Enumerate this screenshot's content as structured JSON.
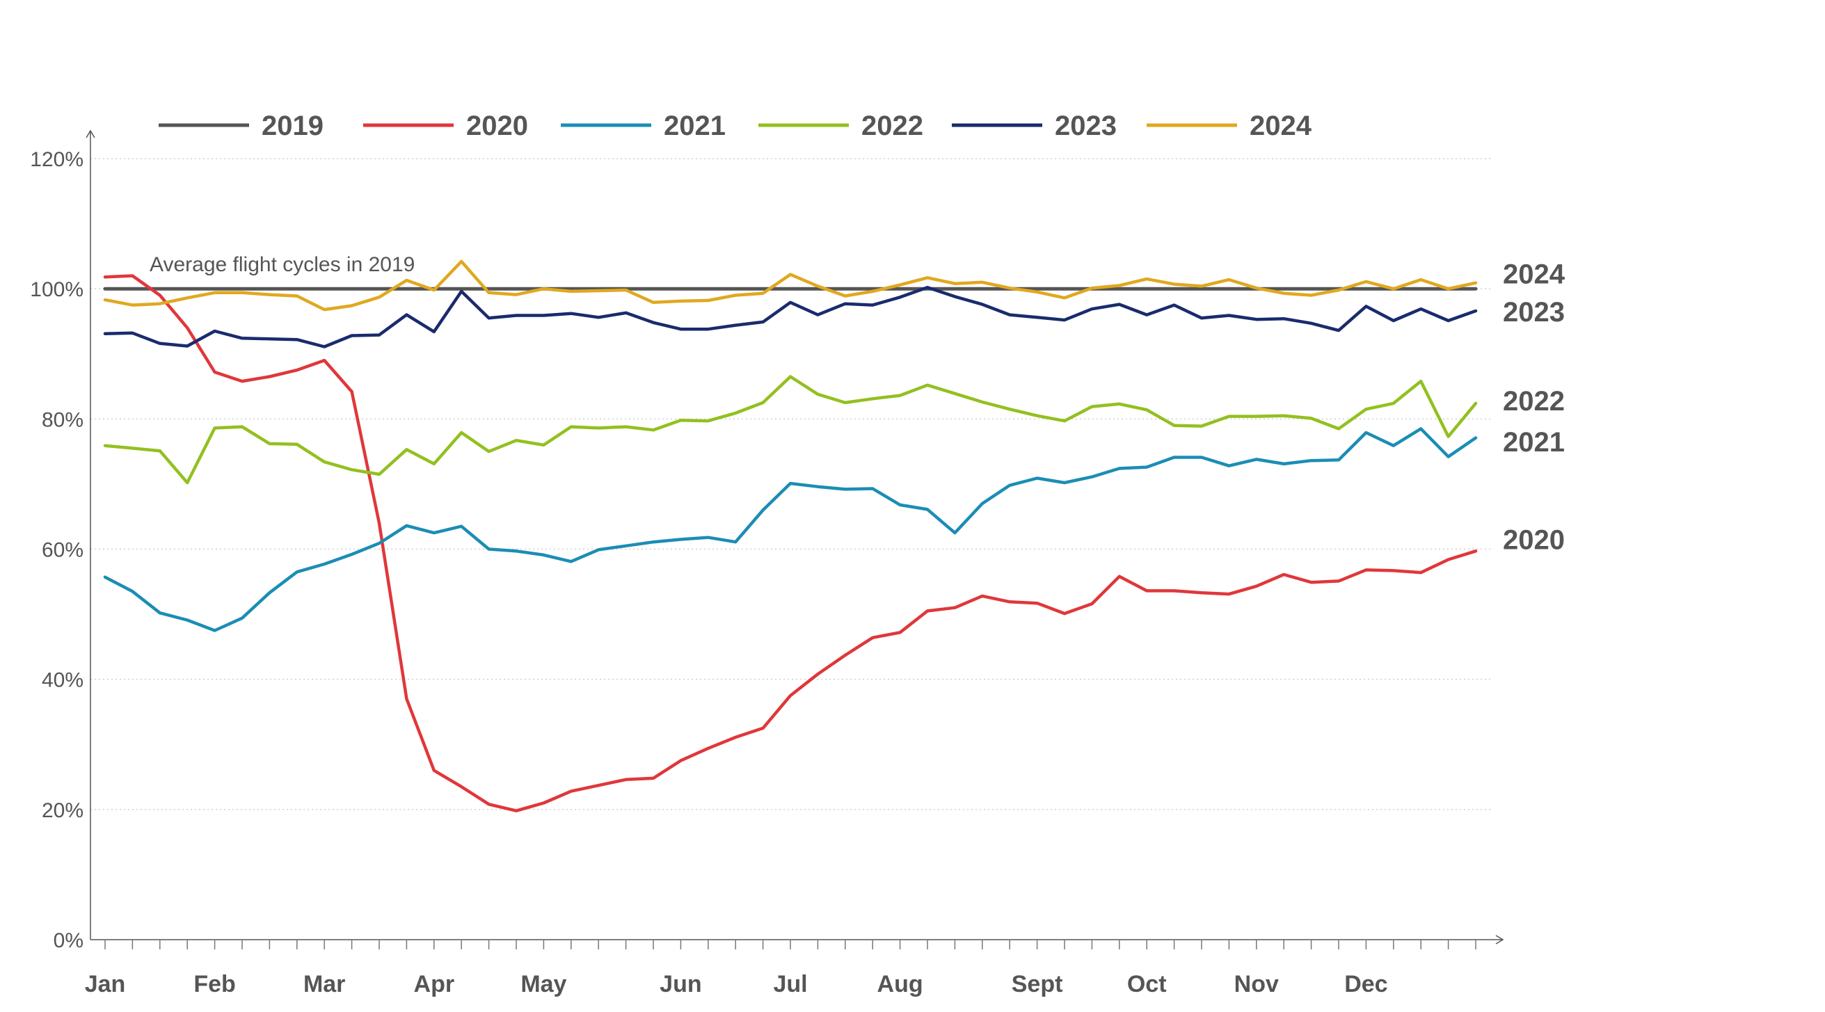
{
  "chart_data": {
    "type": "line",
    "title": "",
    "xlabel": "",
    "ylabel": "",
    "ylim": [
      0,
      120
    ],
    "y_ticks": [
      "0%",
      "20%",
      "40%",
      "60%",
      "80%",
      "100%",
      "120%"
    ],
    "month_labels": [
      "Jan",
      "Feb",
      "Mar",
      "Apr",
      "May",
      "Jun",
      "Jul",
      "Aug",
      "Sept",
      "Oct",
      "Nov",
      "Dec"
    ],
    "month_week_index": [
      0,
      4,
      8,
      12,
      16,
      21,
      25,
      29,
      34,
      38,
      42,
      46
    ],
    "weeks": 51,
    "grid": true,
    "legend": "top",
    "annotation": "Average flight cycles in 2019",
    "series": [
      {
        "name": "2019",
        "color": "#555555",
        "values": [
          100,
          100,
          100,
          100,
          100,
          100,
          100,
          100,
          100,
          100,
          100,
          100,
          100,
          100,
          100,
          100,
          100,
          100,
          100,
          100,
          100,
          100,
          100,
          100,
          100,
          100,
          100,
          100,
          100,
          100,
          100,
          100,
          100,
          100,
          100,
          100,
          100,
          100,
          100,
          100,
          100,
          100,
          100,
          100,
          100,
          100,
          100,
          100,
          100,
          100,
          100
        ]
      },
      {
        "name": "2020",
        "color": "#e0373a",
        "values": [
          101.8,
          102,
          99,
          94,
          87.2,
          85.8,
          86.5,
          87.5,
          89,
          84.2,
          64,
          37,
          26,
          23.5,
          20.8,
          19.8,
          21,
          22.8,
          23.7,
          24.6,
          24.8,
          27.5,
          29.4,
          31.1,
          32.5,
          37.5,
          40.8,
          43.7,
          46.4,
          47.2,
          50.5,
          51,
          52.8,
          51.9,
          51.7,
          50.1,
          51.6,
          55.8,
          53.6,
          53.6,
          53.3,
          53.1,
          54.3,
          56.1,
          54.9,
          55.1,
          56.8,
          56.7,
          56.4,
          58.4,
          59.7
        ]
      },
      {
        "name": "2021",
        "color": "#1b8db5",
        "values": [
          55.7,
          53.5,
          50.2,
          49.1,
          47.5,
          49.4,
          53.3,
          56.5,
          57.7,
          59.2,
          60.9,
          63.6,
          62.5,
          63.5,
          60,
          59.7,
          59.1,
          58.1,
          59.9,
          60.5,
          61.1,
          61.5,
          61.8,
          61.1,
          66,
          70.1,
          69.6,
          69.2,
          69.3,
          66.8,
          66.1,
          62.5,
          67,
          69.8,
          70.9,
          70.2,
          71.1,
          72.4,
          72.6,
          74.1,
          74.1,
          72.8,
          73.8,
          73.1,
          73.6,
          73.7,
          77.9,
          75.9,
          78.5,
          74.2,
          77.1
        ]
      },
      {
        "name": "2022",
        "color": "#93c01f",
        "values": [
          75.9,
          75.5,
          75.1,
          70.2,
          78.6,
          78.8,
          76.2,
          76.1,
          73.4,
          72.2,
          71.5,
          75.3,
          73.1,
          77.9,
          75,
          76.7,
          76,
          78.8,
          78.6,
          78.8,
          78.3,
          79.8,
          79.7,
          80.9,
          82.5,
          86.5,
          83.8,
          82.5,
          83.1,
          83.6,
          85.2,
          83.9,
          82.6,
          81.5,
          80.5,
          79.7,
          81.9,
          82.3,
          81.4,
          79,
          78.9,
          80.4,
          80.4,
          80.5,
          80.1,
          78.5,
          81.5,
          82.4,
          85.8,
          77.3,
          82.4
        ]
      },
      {
        "name": "2023",
        "color": "#1a2b6d",
        "values": [
          93.1,
          93.2,
          91.6,
          91.2,
          93.5,
          92.4,
          92.3,
          92.2,
          91.1,
          92.8,
          92.9,
          96,
          93.4,
          99.6,
          95.5,
          95.9,
          95.9,
          96.2,
          95.6,
          96.3,
          94.8,
          93.8,
          93.8,
          94.4,
          94.9,
          97.9,
          96,
          97.7,
          97.5,
          98.7,
          100.2,
          98.8,
          97.6,
          96,
          95.6,
          95.2,
          96.9,
          97.6,
          96,
          97.5,
          95.5,
          95.9,
          95.3,
          95.4,
          94.7,
          93.6,
          97.3,
          95.1,
          96.9,
          95.1,
          96.6
        ]
      },
      {
        "name": "2024",
        "color": "#e0a81f",
        "values": [
          98.3,
          97.5,
          97.7,
          98.6,
          99.4,
          99.4,
          99.1,
          98.9,
          96.8,
          97.4,
          98.7,
          101.3,
          99.8,
          104.2,
          99.4,
          99.1,
          100,
          99.6,
          99.7,
          99.8,
          97.9,
          98.1,
          98.2,
          99,
          99.3,
          102.2,
          100.4,
          98.9,
          99.6,
          100.6,
          101.7,
          100.8,
          101,
          100.1,
          99.5,
          98.6,
          100.1,
          100.5,
          101.5,
          100.7,
          100.4,
          101.4,
          100.1,
          99.3,
          99,
          99.8,
          101.1,
          100,
          101.4,
          100,
          100.9
        ]
      }
    ],
    "end_labels": [
      {
        "name": "2024",
        "value": 102.3
      },
      {
        "name": "2023",
        "value": 96.5
      },
      {
        "name": "2022",
        "value": 82.8
      },
      {
        "name": "2021",
        "value": 76.5
      },
      {
        "name": "2020",
        "value": 61.5
      }
    ]
  }
}
